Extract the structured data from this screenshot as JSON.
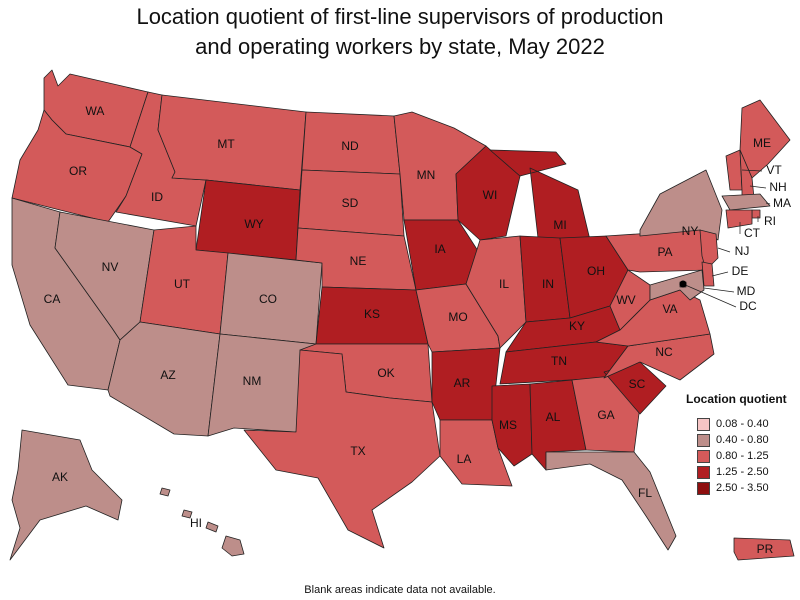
{
  "title_line1": "Location quotient of first-line supervisors of production",
  "title_line2": "and operating workers by state, May 2022",
  "footnote": "Blank areas indicate data not available.",
  "legend": {
    "title": "Location quotient",
    "items": [
      {
        "label": "0.08 - 0.40",
        "color": "#f6c5c5"
      },
      {
        "label": "0.40 - 0.80",
        "color": "#bd8e8a"
      },
      {
        "label": "0.80 - 1.25",
        "color": "#d35a5a"
      },
      {
        "label": "1.25 - 2.50",
        "color": "#b01e22"
      },
      {
        "label": "2.50 - 3.50",
        "color": "#8e0f0f"
      }
    ]
  },
  "states": {
    "WA": {
      "label": "WA",
      "class": 2
    },
    "OR": {
      "label": "OR",
      "class": 2
    },
    "CA": {
      "label": "CA",
      "class": 1
    },
    "ID": {
      "label": "ID",
      "class": 2
    },
    "NV": {
      "label": "NV",
      "class": 1
    },
    "MT": {
      "label": "MT",
      "class": 2
    },
    "WY": {
      "label": "WY",
      "class": 3
    },
    "UT": {
      "label": "UT",
      "class": 2
    },
    "AZ": {
      "label": "AZ",
      "class": 1
    },
    "CO": {
      "label": "CO",
      "class": 1
    },
    "NM": {
      "label": "NM",
      "class": 1
    },
    "ND": {
      "label": "ND",
      "class": 2
    },
    "SD": {
      "label": "SD",
      "class": 2
    },
    "NE": {
      "label": "NE",
      "class": 2
    },
    "KS": {
      "label": "KS",
      "class": 3
    },
    "OK": {
      "label": "OK",
      "class": 2
    },
    "TX": {
      "label": "TX",
      "class": 2
    },
    "MN": {
      "label": "MN",
      "class": 2
    },
    "IA": {
      "label": "IA",
      "class": 3
    },
    "MO": {
      "label": "MO",
      "class": 2
    },
    "AR": {
      "label": "AR",
      "class": 3
    },
    "LA": {
      "label": "LA",
      "class": 2
    },
    "WI": {
      "label": "WI",
      "class": 3
    },
    "IL": {
      "label": "IL",
      "class": 2
    },
    "MI": {
      "label": "MI",
      "class": 3
    },
    "IN": {
      "label": "IN",
      "class": 3
    },
    "OH": {
      "label": "OH",
      "class": 3
    },
    "KY": {
      "label": "KY",
      "class": 3
    },
    "TN": {
      "label": "TN",
      "class": 3
    },
    "MS": {
      "label": "MS",
      "class": 3
    },
    "AL": {
      "label": "AL",
      "class": 3
    },
    "GA": {
      "label": "GA",
      "class": 2
    },
    "FL": {
      "label": "FL",
      "class": 1
    },
    "SC": {
      "label": "SC",
      "class": 3
    },
    "NC": {
      "label": "NC",
      "class": 2
    },
    "VA": {
      "label": "VA",
      "class": 2
    },
    "WV": {
      "label": "WV",
      "class": 2
    },
    "PA": {
      "label": "PA",
      "class": 2
    },
    "NY": {
      "label": "NY",
      "class": 1
    },
    "ME": {
      "label": "ME",
      "class": 2
    },
    "VT": {
      "label": "VT",
      "class": 2
    },
    "NH": {
      "label": "NH",
      "class": 2
    },
    "MA": {
      "label": "MA",
      "class": 1
    },
    "RI": {
      "label": "RI",
      "class": 2
    },
    "CT": {
      "label": "CT",
      "class": 2
    },
    "NJ": {
      "label": "NJ",
      "class": 2
    },
    "DE": {
      "label": "DE",
      "class": 2
    },
    "MD": {
      "label": "MD",
      "class": 1
    },
    "DC": {
      "label": "DC",
      "class": 1
    },
    "AK": {
      "label": "AK",
      "class": 1
    },
    "HI": {
      "label": "HI",
      "class": 1
    },
    "PR": {
      "label": "PR",
      "class": 2
    }
  }
}
